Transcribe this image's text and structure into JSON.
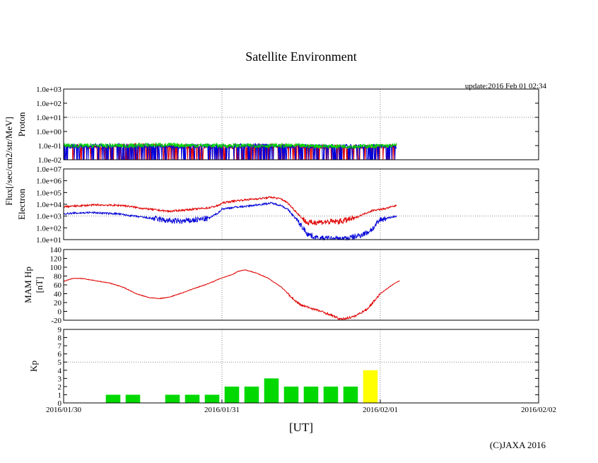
{
  "chart_data": {
    "type": "line",
    "title": "Satellite Environment",
    "update": "update:2016 Feb 01 02:34",
    "xlabel": "[UT]",
    "xlim": [
      0,
      72
    ],
    "x_ticks": [
      {
        "label": "2016/01/30",
        "hour": 0
      },
      {
        "label": "2016/01/31",
        "hour": 24
      },
      {
        "label": "2016/02/01",
        "hour": 48
      },
      {
        "label": "2016/02/02",
        "hour": 72
      }
    ],
    "shared_ylabel": "Flux[/sec/cm2/str/MeV]",
    "copyright": "(C)JAXA 2016",
    "colors": {
      "red": "#e00000",
      "blue": "#0000d8",
      "green": "#00d800",
      "yellow": "#ffff00",
      "grid": "#888888"
    },
    "panels": [
      {
        "id": "proton",
        "ylabel": "Proton",
        "scale": "log",
        "ylim": [
          -2,
          3
        ],
        "y_ticks": [
          "1.0e-02",
          "1.0e-01",
          "1.0e+00",
          "1.0e+01",
          "1.0e+02",
          "1.0e+03"
        ],
        "dotted_at": [
          1
        ],
        "series": [
          {
            "name": "proton-red",
            "color": "red",
            "hours": [
              0,
              50.5
            ],
            "points": [
              [
                0,
                -1.05
              ],
              [
                6,
                -1.1
              ],
              [
                12,
                -0.95
              ],
              [
                18,
                -1.05
              ],
              [
                24,
                -1.1
              ],
              [
                30,
                -1.0
              ],
              [
                36,
                -1.05
              ],
              [
                42,
                -1.1
              ],
              [
                50.5,
                -1.05
              ]
            ],
            "spiky": true
          },
          {
            "name": "proton-blue",
            "color": "blue",
            "hours": [
              0,
              50.5
            ],
            "points": [
              [
                0,
                -1.05
              ],
              [
                6,
                -1.0
              ],
              [
                12,
                -1.0
              ],
              [
                18,
                -1.05
              ],
              [
                24,
                -1.0
              ],
              [
                30,
                -1.0
              ],
              [
                36,
                -1.05
              ],
              [
                42,
                -1.05
              ],
              [
                50.5,
                -1.05
              ]
            ],
            "spiky": true
          },
          {
            "name": "proton-green",
            "color": "green",
            "hours": [
              0,
              50.5
            ],
            "points": [
              [
                0,
                -1.0
              ],
              [
                10,
                -1.0
              ],
              [
                14,
                -0.95
              ],
              [
                24,
                -1.0
              ],
              [
                34,
                -1.0
              ],
              [
                44,
                -1.05
              ],
              [
                50.5,
                -1.0
              ]
            ],
            "spiky": false
          }
        ]
      },
      {
        "id": "electron",
        "ylabel": "Electron",
        "scale": "log",
        "ylim": [
          1,
          7
        ],
        "y_ticks": [
          "1.0e+01",
          "1.0e+02",
          "1.0e+03",
          "1.0e+04",
          "1.0e+05",
          "1.0e+06",
          "1.0e+07"
        ],
        "dotted_at": [
          3
        ],
        "series": [
          {
            "name": "electron-red",
            "color": "red",
            "hours": [
              0,
              50.5
            ],
            "points": [
              [
                0,
                3.8
              ],
              [
                5,
                3.95
              ],
              [
                9,
                3.9
              ],
              [
                12,
                3.65
              ],
              [
                16,
                3.4
              ],
              [
                18,
                3.5
              ],
              [
                22,
                3.7
              ],
              [
                23.5,
                3.9
              ],
              [
                24,
                4.1
              ],
              [
                26,
                4.3
              ],
              [
                28,
                4.4
              ],
              [
                30,
                4.5
              ],
              [
                31.5,
                4.6
              ],
              [
                33,
                4.45
              ],
              [
                34,
                4.1
              ],
              [
                35,
                3.5
              ],
              [
                36,
                2.9
              ],
              [
                37,
                2.4
              ],
              [
                38.5,
                2.5
              ],
              [
                40,
                2.5
              ],
              [
                42,
                2.55
              ],
              [
                44,
                2.8
              ],
              [
                46,
                3.3
              ],
              [
                47,
                3.5
              ],
              [
                48.5,
                3.6
              ],
              [
                50.5,
                3.9
              ]
            ],
            "spiky": true
          },
          {
            "name": "electron-blue",
            "color": "blue",
            "hours": [
              0,
              50.5
            ],
            "points": [
              [
                0,
                3.2
              ],
              [
                4,
                3.3
              ],
              [
                8,
                3.2
              ],
              [
                12,
                2.9
              ],
              [
                16,
                2.6
              ],
              [
                18,
                2.55
              ],
              [
                22,
                2.8
              ],
              [
                23.5,
                3.3
              ],
              [
                24,
                3.6
              ],
              [
                26,
                3.75
              ],
              [
                28,
                3.85
              ],
              [
                30,
                4.0
              ],
              [
                31.5,
                4.1
              ],
              [
                33,
                3.9
              ],
              [
                34,
                3.55
              ],
              [
                35,
                2.9
              ],
              [
                36,
                2.2
              ],
              [
                37,
                1.5
              ],
              [
                38.5,
                1.1
              ],
              [
                42,
                1.05
              ],
              [
                44,
                1.2
              ],
              [
                46,
                1.6
              ],
              [
                47,
                2.0
              ],
              [
                48,
                2.7
              ],
              [
                50.5,
                3.0
              ]
            ],
            "spiky": true
          }
        ]
      },
      {
        "id": "hp",
        "ylabel": "MAM Hp",
        "ylabel2": "[nT]",
        "scale": "linear",
        "ylim": [
          -20,
          140
        ],
        "y_ticks": [
          "-20",
          "0",
          "20",
          "40",
          "60",
          "80",
          "100",
          "120",
          "140"
        ],
        "dotted_at": [],
        "series": [
          {
            "name": "hp-red",
            "color": "red",
            "hours": [
              0,
              51
            ],
            "points": [
              [
                0,
                68
              ],
              [
                1.5,
                75
              ],
              [
                3,
                74
              ],
              [
                5,
                69
              ],
              [
                7,
                64
              ],
              [
                9,
                55
              ],
              [
                11,
                40
              ],
              [
                13,
                31
              ],
              [
                14.5,
                29
              ],
              [
                16,
                32
              ],
              [
                18,
                42
              ],
              [
                20,
                53
              ],
              [
                22,
                63
              ],
              [
                24,
                76
              ],
              [
                25.5,
                83
              ],
              [
                26.5,
                91
              ],
              [
                27.5,
                94
              ],
              [
                29,
                88
              ],
              [
                31,
                75
              ],
              [
                33,
                55
              ],
              [
                35,
                25
              ],
              [
                36,
                14
              ],
              [
                38,
                5
              ],
              [
                40,
                -5
              ],
              [
                42,
                -18
              ],
              [
                44,
                -12
              ],
              [
                46,
                5
              ],
              [
                48,
                40
              ],
              [
                50,
                62
              ],
              [
                51,
                70
              ]
            ],
            "spiky": true
          }
        ]
      },
      {
        "id": "kp",
        "ylabel": "Kp",
        "scale": "linear",
        "ylim": [
          0,
          9
        ],
        "y_ticks": [
          "0",
          "1",
          "2",
          "3",
          "4",
          "5",
          "6",
          "7",
          "8",
          "9"
        ],
        "dotted_at": [
          5
        ],
        "bars": [
          {
            "start": 6,
            "value": 1,
            "color": "green"
          },
          {
            "start": 9,
            "value": 1,
            "color": "green"
          },
          {
            "start": 15,
            "value": 1,
            "color": "green"
          },
          {
            "start": 18,
            "value": 1,
            "color": "green"
          },
          {
            "start": 21,
            "value": 1,
            "color": "green"
          },
          {
            "start": 24,
            "value": 2,
            "color": "green"
          },
          {
            "start": 27,
            "value": 2,
            "color": "green"
          },
          {
            "start": 30,
            "value": 3,
            "color": "green"
          },
          {
            "start": 33,
            "value": 2,
            "color": "green"
          },
          {
            "start": 36,
            "value": 2,
            "color": "green"
          },
          {
            "start": 39,
            "value": 2,
            "color": "green"
          },
          {
            "start": 42,
            "value": 2,
            "color": "green"
          },
          {
            "start": 45,
            "value": 4,
            "color": "yellow"
          }
        ]
      }
    ]
  }
}
